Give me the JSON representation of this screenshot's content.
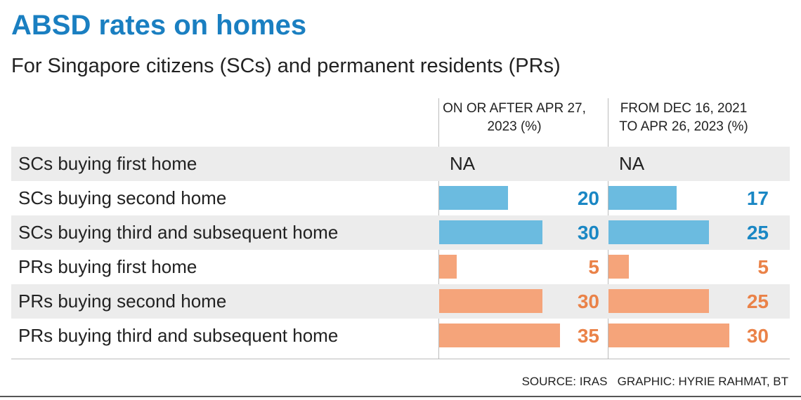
{
  "chart_data": {
    "type": "table-bar",
    "title": "ABSD rates on homes",
    "subtitle": "For Singapore citizens (SCs) and permanent residents (PRs)",
    "categories": [
      "SCs buying first home",
      "SCs buying second home",
      "SCs buying third and subsequent home",
      "PRs buying first home",
      "PRs buying second home",
      "PRs buying third and subsequent home"
    ],
    "colors": [
      "#6bbbe0",
      "#6bbbe0",
      "#6bbbe0",
      "#f5a47a",
      "#f5a47a",
      "#f5a47a"
    ],
    "label_colors": [
      "#1a87c4",
      "#1a87c4",
      "#1a87c4",
      "#ea8248",
      "#ea8248",
      "#ea8248"
    ],
    "series": [
      {
        "name": "ON OR AFTER APR 27, 2023 (%)",
        "values": [
          null,
          20,
          30,
          5,
          30,
          35
        ],
        "value_labels": [
          "NA",
          "20",
          "30",
          "5",
          "30",
          "35"
        ],
        "xlim": [
          0,
          35
        ]
      },
      {
        "name": "FROM DEC 16, 2021 TO APR 26, 2023 (%)",
        "values": [
          null,
          17,
          25,
          5,
          25,
          30
        ],
        "value_labels": [
          "NA",
          "17",
          "25",
          "5",
          "25",
          "30"
        ],
        "xlim": [
          0,
          30
        ]
      }
    ],
    "source": "SOURCE: IRAS",
    "credit": "GRAPHIC: HYRIE RAHMAT, BT"
  }
}
